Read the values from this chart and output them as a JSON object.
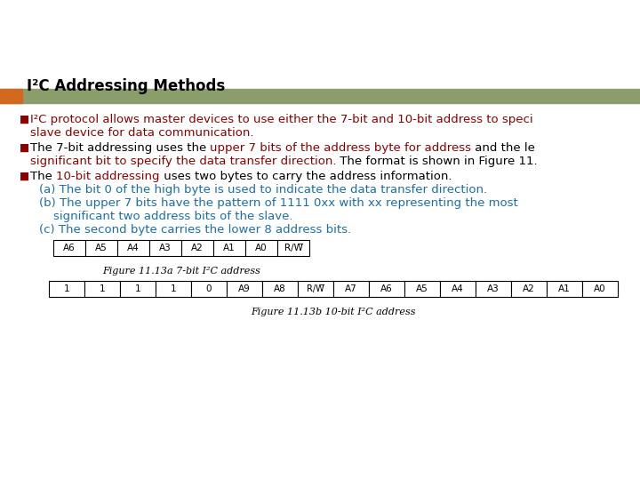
{
  "title": "I²C Addressing Methods",
  "title_color": "#000000",
  "title_fontsize": 12,
  "header_bar_color": "#8B9D6A",
  "header_bar_left_color": "#D2691E",
  "bg_color": "#FFFFFF",
  "fig7bit_labels": [
    "A6",
    "A5",
    "A4",
    "A3",
    "A2",
    "A1",
    "A0",
    "R/W̅"
  ],
  "fig7bit_caption": "Figure 11.13a 7-bit I²C address",
  "fig10bit_labels": [
    "1",
    "1",
    "1",
    "1",
    "0",
    "A9",
    "A8",
    "R/W̅",
    "A7",
    "A6",
    "A5",
    "A4",
    "A3",
    "A2",
    "A1",
    "A0"
  ],
  "fig10bit_caption": "Figure 11.13b 10-bit I²C address",
  "body_fontsize": 9.5,
  "caption_fontsize": 8.0,
  "table_fontsize": 7.5
}
